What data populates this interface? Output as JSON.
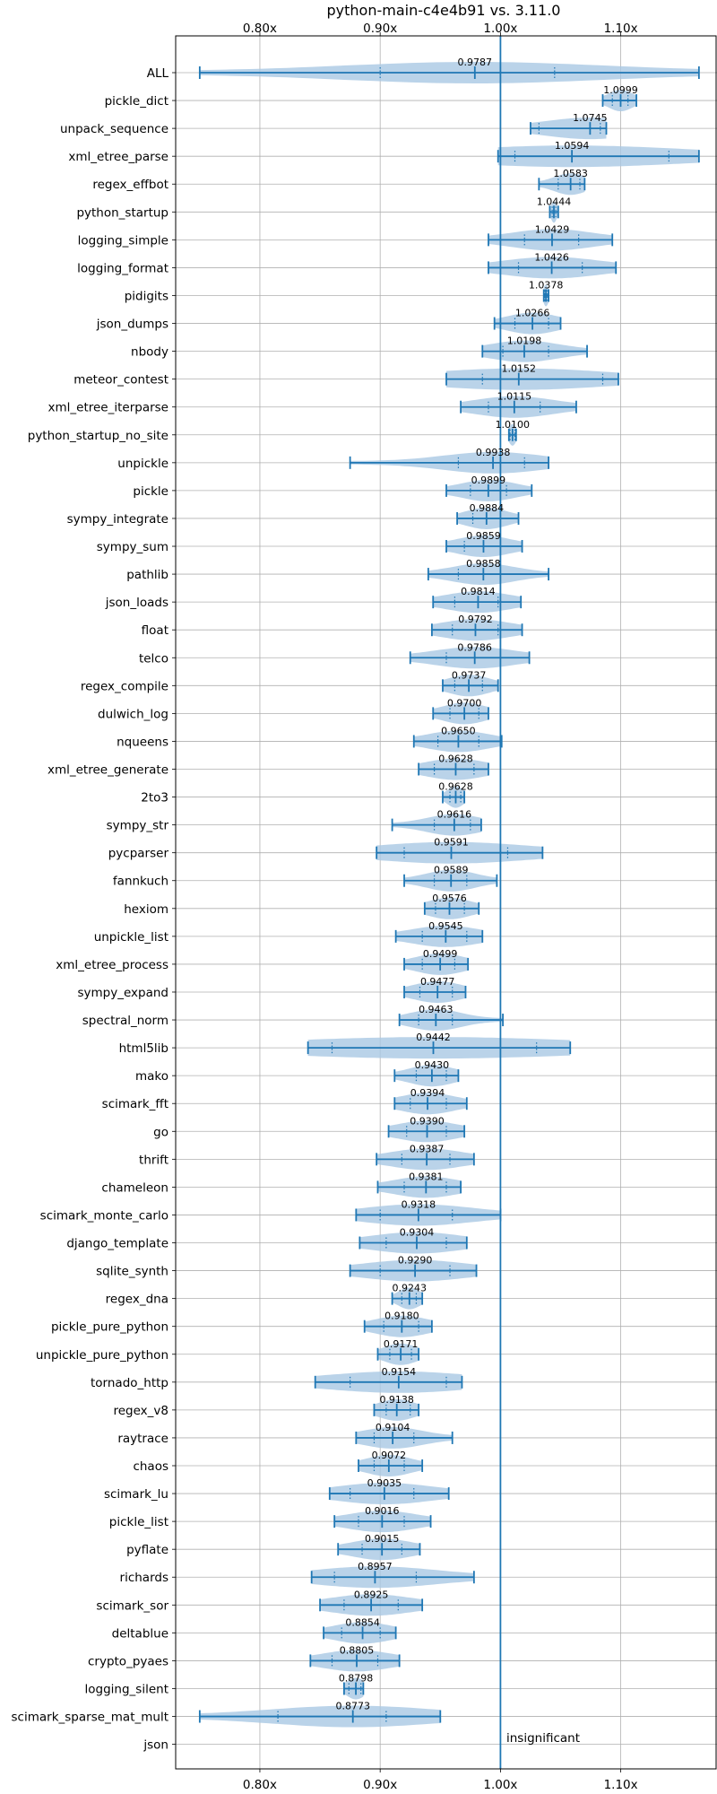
{
  "chart_data": {
    "type": "violin",
    "title": "python-main-c4e4b91 vs. 3.11.0",
    "xlabel": "",
    "ylabel": "",
    "x_range": [
      0.73,
      1.18
    ],
    "x_ticks": [
      0.8,
      0.9,
      1.0,
      1.1
    ],
    "x_tick_labels": [
      "0.80x",
      "0.90x",
      "1.00x",
      "1.10x"
    ],
    "grid": true,
    "reference_line": 1.0,
    "annotation": "insignificant",
    "colors": {
      "violin_fill": "#a9c8e4",
      "whisker": "#1f77b4",
      "axis": "#000000",
      "grid": "#b0b0b0"
    },
    "benchmarks": [
      {
        "name": "ALL",
        "label": "0.9787",
        "median": 0.9787,
        "min": 0.75,
        "max": 1.165,
        "q1": 0.9,
        "q3": 1.045
      },
      {
        "name": "pickle_dict",
        "label": "1.0999",
        "median": 1.0999,
        "min": 1.085,
        "max": 1.113,
        "q1": 1.093,
        "q3": 1.106
      },
      {
        "name": "unpack_sequence",
        "label": "1.0745",
        "median": 1.0745,
        "min": 1.025,
        "max": 1.088,
        "q1": 1.032,
        "q3": 1.083
      },
      {
        "name": "xml_etree_parse",
        "label": "1.0594",
        "median": 1.0594,
        "min": 0.998,
        "max": 1.165,
        "q1": 1.012,
        "q3": 1.14
      },
      {
        "name": "regex_effbot",
        "label": "1.0583",
        "median": 1.0583,
        "min": 1.032,
        "max": 1.07,
        "q1": 1.048,
        "q3": 1.066
      },
      {
        "name": "python_startup",
        "label": "1.0444",
        "median": 1.0444,
        "min": 1.041,
        "max": 1.048,
        "q1": 1.043,
        "q3": 1.046
      },
      {
        "name": "logging_simple",
        "label": "1.0429",
        "median": 1.0429,
        "min": 0.99,
        "max": 1.093,
        "q1": 1.02,
        "q3": 1.065
      },
      {
        "name": "logging_format",
        "label": "1.0426",
        "median": 1.0426,
        "min": 0.99,
        "max": 1.096,
        "q1": 1.015,
        "q3": 1.068
      },
      {
        "name": "pidigits",
        "label": "1.0378",
        "median": 1.0378,
        "min": 1.036,
        "max": 1.04,
        "q1": 1.037,
        "q3": 1.039
      },
      {
        "name": "json_dumps",
        "label": "1.0266",
        "median": 1.0266,
        "min": 0.995,
        "max": 1.05,
        "q1": 1.012,
        "q3": 1.04
      },
      {
        "name": "nbody",
        "label": "1.0198",
        "median": 1.0198,
        "min": 0.985,
        "max": 1.072,
        "q1": 1.002,
        "q3": 1.04
      },
      {
        "name": "meteor_contest",
        "label": "1.0152",
        "median": 1.0152,
        "min": 0.955,
        "max": 1.098,
        "q1": 0.985,
        "q3": 1.085
      },
      {
        "name": "xml_etree_iterparse",
        "label": "1.0115",
        "median": 1.0115,
        "min": 0.967,
        "max": 1.063,
        "q1": 0.99,
        "q3": 1.033
      },
      {
        "name": "python_startup_no_site",
        "label": "1.0100",
        "median": 1.01,
        "min": 1.007,
        "max": 1.013,
        "q1": 1.008,
        "q3": 1.012
      },
      {
        "name": "unpickle",
        "label": "0.9938",
        "median": 0.9938,
        "min": 0.875,
        "max": 1.04,
        "q1": 0.965,
        "q3": 1.02
      },
      {
        "name": "pickle",
        "label": "0.9899",
        "median": 0.9899,
        "min": 0.955,
        "max": 1.026,
        "q1": 0.975,
        "q3": 1.005
      },
      {
        "name": "sympy_integrate",
        "label": "0.9884",
        "median": 0.9884,
        "min": 0.964,
        "max": 1.015,
        "q1": 0.977,
        "q3": 1.0
      },
      {
        "name": "sympy_sum",
        "label": "0.9859",
        "median": 0.9859,
        "min": 0.955,
        "max": 1.018,
        "q1": 0.97,
        "q3": 1.0
      },
      {
        "name": "pathlib",
        "label": "0.9858",
        "median": 0.9858,
        "min": 0.94,
        "max": 1.04,
        "q1": 0.965,
        "q3": 1.0
      },
      {
        "name": "json_loads",
        "label": "0.9814",
        "median": 0.9814,
        "min": 0.944,
        "max": 1.017,
        "q1": 0.962,
        "q3": 0.998
      },
      {
        "name": "float",
        "label": "0.9792",
        "median": 0.9792,
        "min": 0.943,
        "max": 1.018,
        "q1": 0.96,
        "q3": 0.998
      },
      {
        "name": "telco",
        "label": "0.9786",
        "median": 0.9786,
        "min": 0.925,
        "max": 1.024,
        "q1": 0.955,
        "q3": 1.0
      },
      {
        "name": "regex_compile",
        "label": "0.9737",
        "median": 0.9737,
        "min": 0.952,
        "max": 0.998,
        "q1": 0.962,
        "q3": 0.985
      },
      {
        "name": "dulwich_log",
        "label": "0.9700",
        "median": 0.97,
        "min": 0.944,
        "max": 0.99,
        "q1": 0.958,
        "q3": 0.982
      },
      {
        "name": "nqueens",
        "label": "0.9650",
        "median": 0.965,
        "min": 0.928,
        "max": 1.001,
        "q1": 0.948,
        "q3": 0.982
      },
      {
        "name": "xml_etree_generate",
        "label": "0.9628",
        "median": 0.9628,
        "min": 0.932,
        "max": 0.99,
        "q1": 0.945,
        "q3": 0.978
      },
      {
        "name": "2to3",
        "label": "0.9628",
        "median": 0.9628,
        "min": 0.952,
        "max": 0.97,
        "q1": 0.958,
        "q3": 0.967
      },
      {
        "name": "sympy_str",
        "label": "0.9616",
        "median": 0.9616,
        "min": 0.91,
        "max": 0.984,
        "q1": 0.945,
        "q3": 0.975
      },
      {
        "name": "pycparser",
        "label": "0.9591",
        "median": 0.9591,
        "min": 0.897,
        "max": 1.035,
        "q1": 0.92,
        "q3": 1.006
      },
      {
        "name": "fannkuch",
        "label": "0.9589",
        "median": 0.9589,
        "min": 0.92,
        "max": 0.997,
        "q1": 0.945,
        "q3": 0.972
      },
      {
        "name": "hexiom",
        "label": "0.9576",
        "median": 0.9576,
        "min": 0.937,
        "max": 0.982,
        "q1": 0.946,
        "q3": 0.97
      },
      {
        "name": "unpickle_list",
        "label": "0.9545",
        "median": 0.9545,
        "min": 0.913,
        "max": 0.985,
        "q1": 0.935,
        "q3": 0.972
      },
      {
        "name": "xml_etree_process",
        "label": "0.9499",
        "median": 0.9499,
        "min": 0.92,
        "max": 0.973,
        "q1": 0.935,
        "q3": 0.962
      },
      {
        "name": "sympy_expand",
        "label": "0.9477",
        "median": 0.9477,
        "min": 0.92,
        "max": 0.971,
        "q1": 0.933,
        "q3": 0.96
      },
      {
        "name": "spectral_norm",
        "label": "0.9463",
        "median": 0.9463,
        "min": 0.916,
        "max": 1.002,
        "q1": 0.932,
        "q3": 0.96
      },
      {
        "name": "html5lib",
        "label": "0.9442",
        "median": 0.9442,
        "min": 0.84,
        "max": 1.058,
        "q1": 0.86,
        "q3": 1.03
      },
      {
        "name": "mako",
        "label": "0.9430",
        "median": 0.943,
        "min": 0.912,
        "max": 0.965,
        "q1": 0.93,
        "q3": 0.955
      },
      {
        "name": "scimark_fft",
        "label": "0.9394",
        "median": 0.9394,
        "min": 0.912,
        "max": 0.972,
        "q1": 0.925,
        "q3": 0.955
      },
      {
        "name": "go",
        "label": "0.9390",
        "median": 0.939,
        "min": 0.907,
        "max": 0.97,
        "q1": 0.922,
        "q3": 0.955
      },
      {
        "name": "thrift",
        "label": "0.9387",
        "median": 0.9387,
        "min": 0.897,
        "max": 0.978,
        "q1": 0.918,
        "q3": 0.958
      },
      {
        "name": "chameleon",
        "label": "0.9381",
        "median": 0.9381,
        "min": 0.898,
        "max": 0.967,
        "q1": 0.92,
        "q3": 0.955
      },
      {
        "name": "scimark_monte_carlo",
        "label": "0.9318",
        "median": 0.9318,
        "min": 0.88,
        "max": 1.0,
        "q1": 0.9,
        "q3": 0.96
      },
      {
        "name": "django_template",
        "label": "0.9304",
        "median": 0.9304,
        "min": 0.883,
        "max": 0.972,
        "q1": 0.905,
        "q3": 0.955
      },
      {
        "name": "sqlite_synth",
        "label": "0.9290",
        "median": 0.929,
        "min": 0.875,
        "max": 0.98,
        "q1": 0.9,
        "q3": 0.958
      },
      {
        "name": "regex_dna",
        "label": "0.9243",
        "median": 0.9243,
        "min": 0.91,
        "max": 0.935,
        "q1": 0.918,
        "q3": 0.93
      },
      {
        "name": "pickle_pure_python",
        "label": "0.9180",
        "median": 0.918,
        "min": 0.887,
        "max": 0.943,
        "q1": 0.903,
        "q3": 0.932
      },
      {
        "name": "unpickle_pure_python",
        "label": "0.9171",
        "median": 0.9171,
        "min": 0.898,
        "max": 0.932,
        "q1": 0.908,
        "q3": 0.926
      },
      {
        "name": "tornado_http",
        "label": "0.9154",
        "median": 0.9154,
        "min": 0.846,
        "max": 0.968,
        "q1": 0.875,
        "q3": 0.955
      },
      {
        "name": "regex_v8",
        "label": "0.9138",
        "median": 0.9138,
        "min": 0.895,
        "max": 0.932,
        "q1": 0.905,
        "q3": 0.925
      },
      {
        "name": "raytrace",
        "label": "0.9104",
        "median": 0.9104,
        "min": 0.88,
        "max": 0.96,
        "q1": 0.895,
        "q3": 0.928
      },
      {
        "name": "chaos",
        "label": "0.9072",
        "median": 0.9072,
        "min": 0.882,
        "max": 0.935,
        "q1": 0.895,
        "q3": 0.92
      },
      {
        "name": "scimark_lu",
        "label": "0.9035",
        "median": 0.9035,
        "min": 0.858,
        "max": 0.957,
        "q1": 0.875,
        "q3": 0.928
      },
      {
        "name": "pickle_list",
        "label": "0.9016",
        "median": 0.9016,
        "min": 0.862,
        "max": 0.942,
        "q1": 0.882,
        "q3": 0.92
      },
      {
        "name": "pyflate",
        "label": "0.9015",
        "median": 0.9015,
        "min": 0.865,
        "max": 0.933,
        "q1": 0.885,
        "q3": 0.918
      },
      {
        "name": "richards",
        "label": "0.8957",
        "median": 0.8957,
        "min": 0.843,
        "max": 0.978,
        "q1": 0.862,
        "q3": 0.93
      },
      {
        "name": "scimark_sor",
        "label": "0.8925",
        "median": 0.8925,
        "min": 0.85,
        "max": 0.935,
        "q1": 0.87,
        "q3": 0.915
      },
      {
        "name": "deltablue",
        "label": "0.8854",
        "median": 0.8854,
        "min": 0.853,
        "max": 0.913,
        "q1": 0.868,
        "q3": 0.9
      },
      {
        "name": "crypto_pyaes",
        "label": "0.8805",
        "median": 0.8805,
        "min": 0.842,
        "max": 0.916,
        "q1": 0.86,
        "q3": 0.898
      },
      {
        "name": "logging_silent",
        "label": "0.8798",
        "median": 0.8798,
        "min": 0.87,
        "max": 0.886,
        "q1": 0.874,
        "q3": 0.884
      },
      {
        "name": "scimark_sparse_mat_mult",
        "label": "0.8773",
        "median": 0.8773,
        "min": 0.75,
        "max": 0.95,
        "q1": 0.815,
        "q3": 0.905
      },
      {
        "name": "json",
        "label": "",
        "median": null,
        "min": null,
        "max": null,
        "q1": null,
        "q3": null
      }
    ]
  }
}
